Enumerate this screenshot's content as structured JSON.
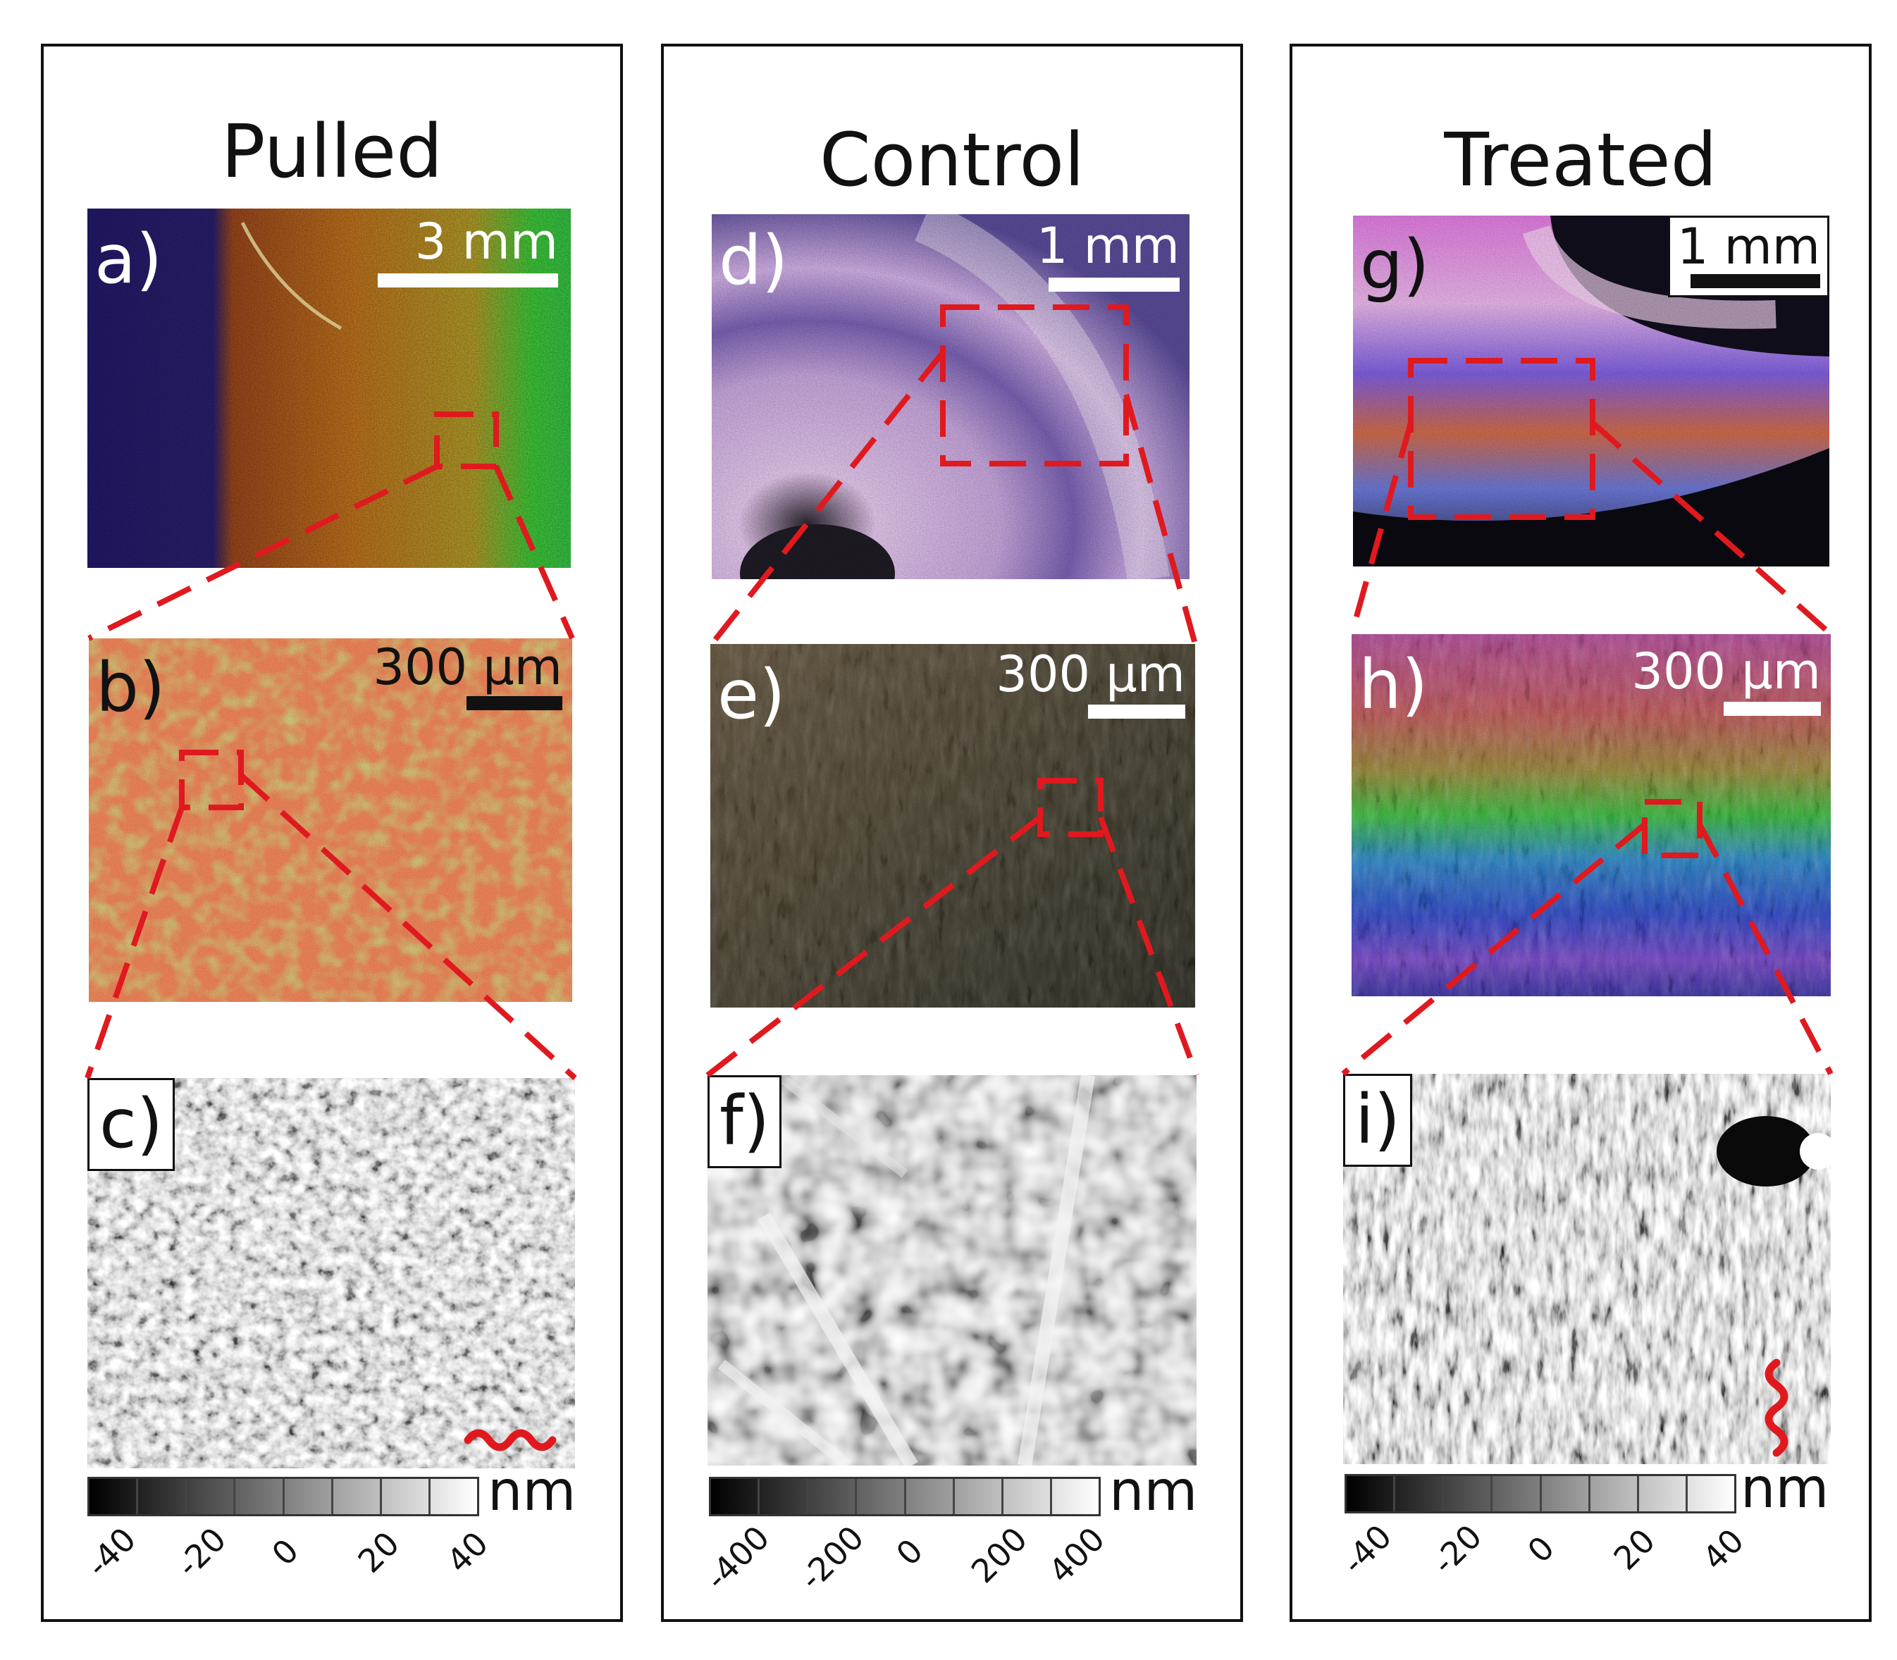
{
  "columns": [
    {
      "title": "Pulled",
      "panels": {
        "top": {
          "label": "a)",
          "scale": "3 mm"
        },
        "middle": {
          "label": "b)",
          "scale": "300 µm"
        },
        "bottom": {
          "label": "c)"
        }
      },
      "colorbar": {
        "unit": "nm",
        "ticks": [
          "-40",
          "-20",
          "0",
          "20",
          "40"
        ]
      }
    },
    {
      "title": "Control",
      "panels": {
        "top": {
          "label": "d)",
          "scale": "1 mm"
        },
        "middle": {
          "label": "e)",
          "scale": "300 µm"
        },
        "bottom": {
          "label": "f)"
        }
      },
      "colorbar": {
        "unit": "nm",
        "ticks": [
          "-400",
          "-200",
          "0",
          "200",
          "400"
        ]
      }
    },
    {
      "title": "Treated",
      "panels": {
        "top": {
          "label": "g)",
          "scale": "1 mm"
        },
        "middle": {
          "label": "h)",
          "scale": "300 µm"
        },
        "bottom": {
          "label": "i)"
        }
      },
      "colorbar": {
        "unit": "nm",
        "ticks": [
          "-40",
          "-20",
          "0",
          "20",
          "40"
        ]
      }
    }
  ],
  "colors": {
    "zoom_box": "#e0191f",
    "frame": "#111111"
  }
}
